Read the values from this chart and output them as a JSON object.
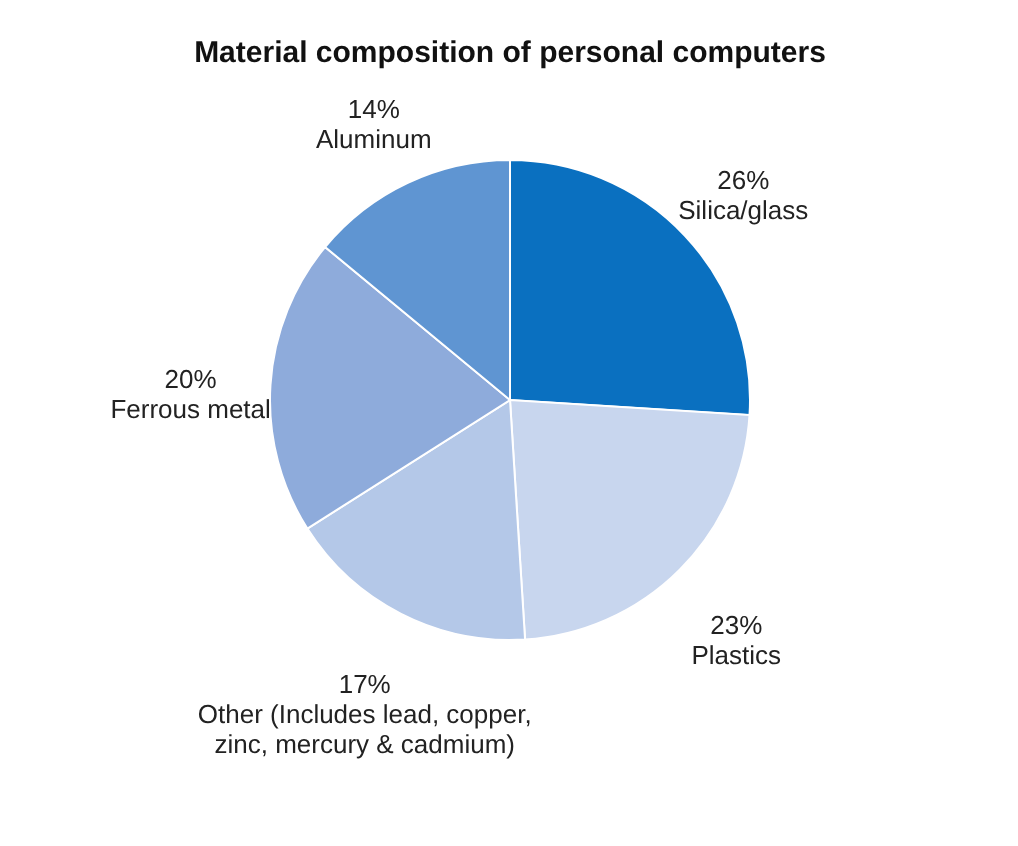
{
  "chart_data": {
    "type": "pie",
    "title": "Material composition of personal computers",
    "categories": [
      "Silica/glass",
      "Plastics",
      "Other (Includes  lead, copper, zinc, mercury & cadmium)",
      "Ferrous metal",
      "Aluminum"
    ],
    "values": [
      26,
      23,
      17,
      20,
      14
    ],
    "value_labels": [
      "26%",
      "23%",
      "17%",
      "20%",
      "14%"
    ],
    "colors": [
      "#0a70c0",
      "#c8d6ee",
      "#b4c8e8",
      "#8eabdb",
      "#5f95d2"
    ]
  }
}
